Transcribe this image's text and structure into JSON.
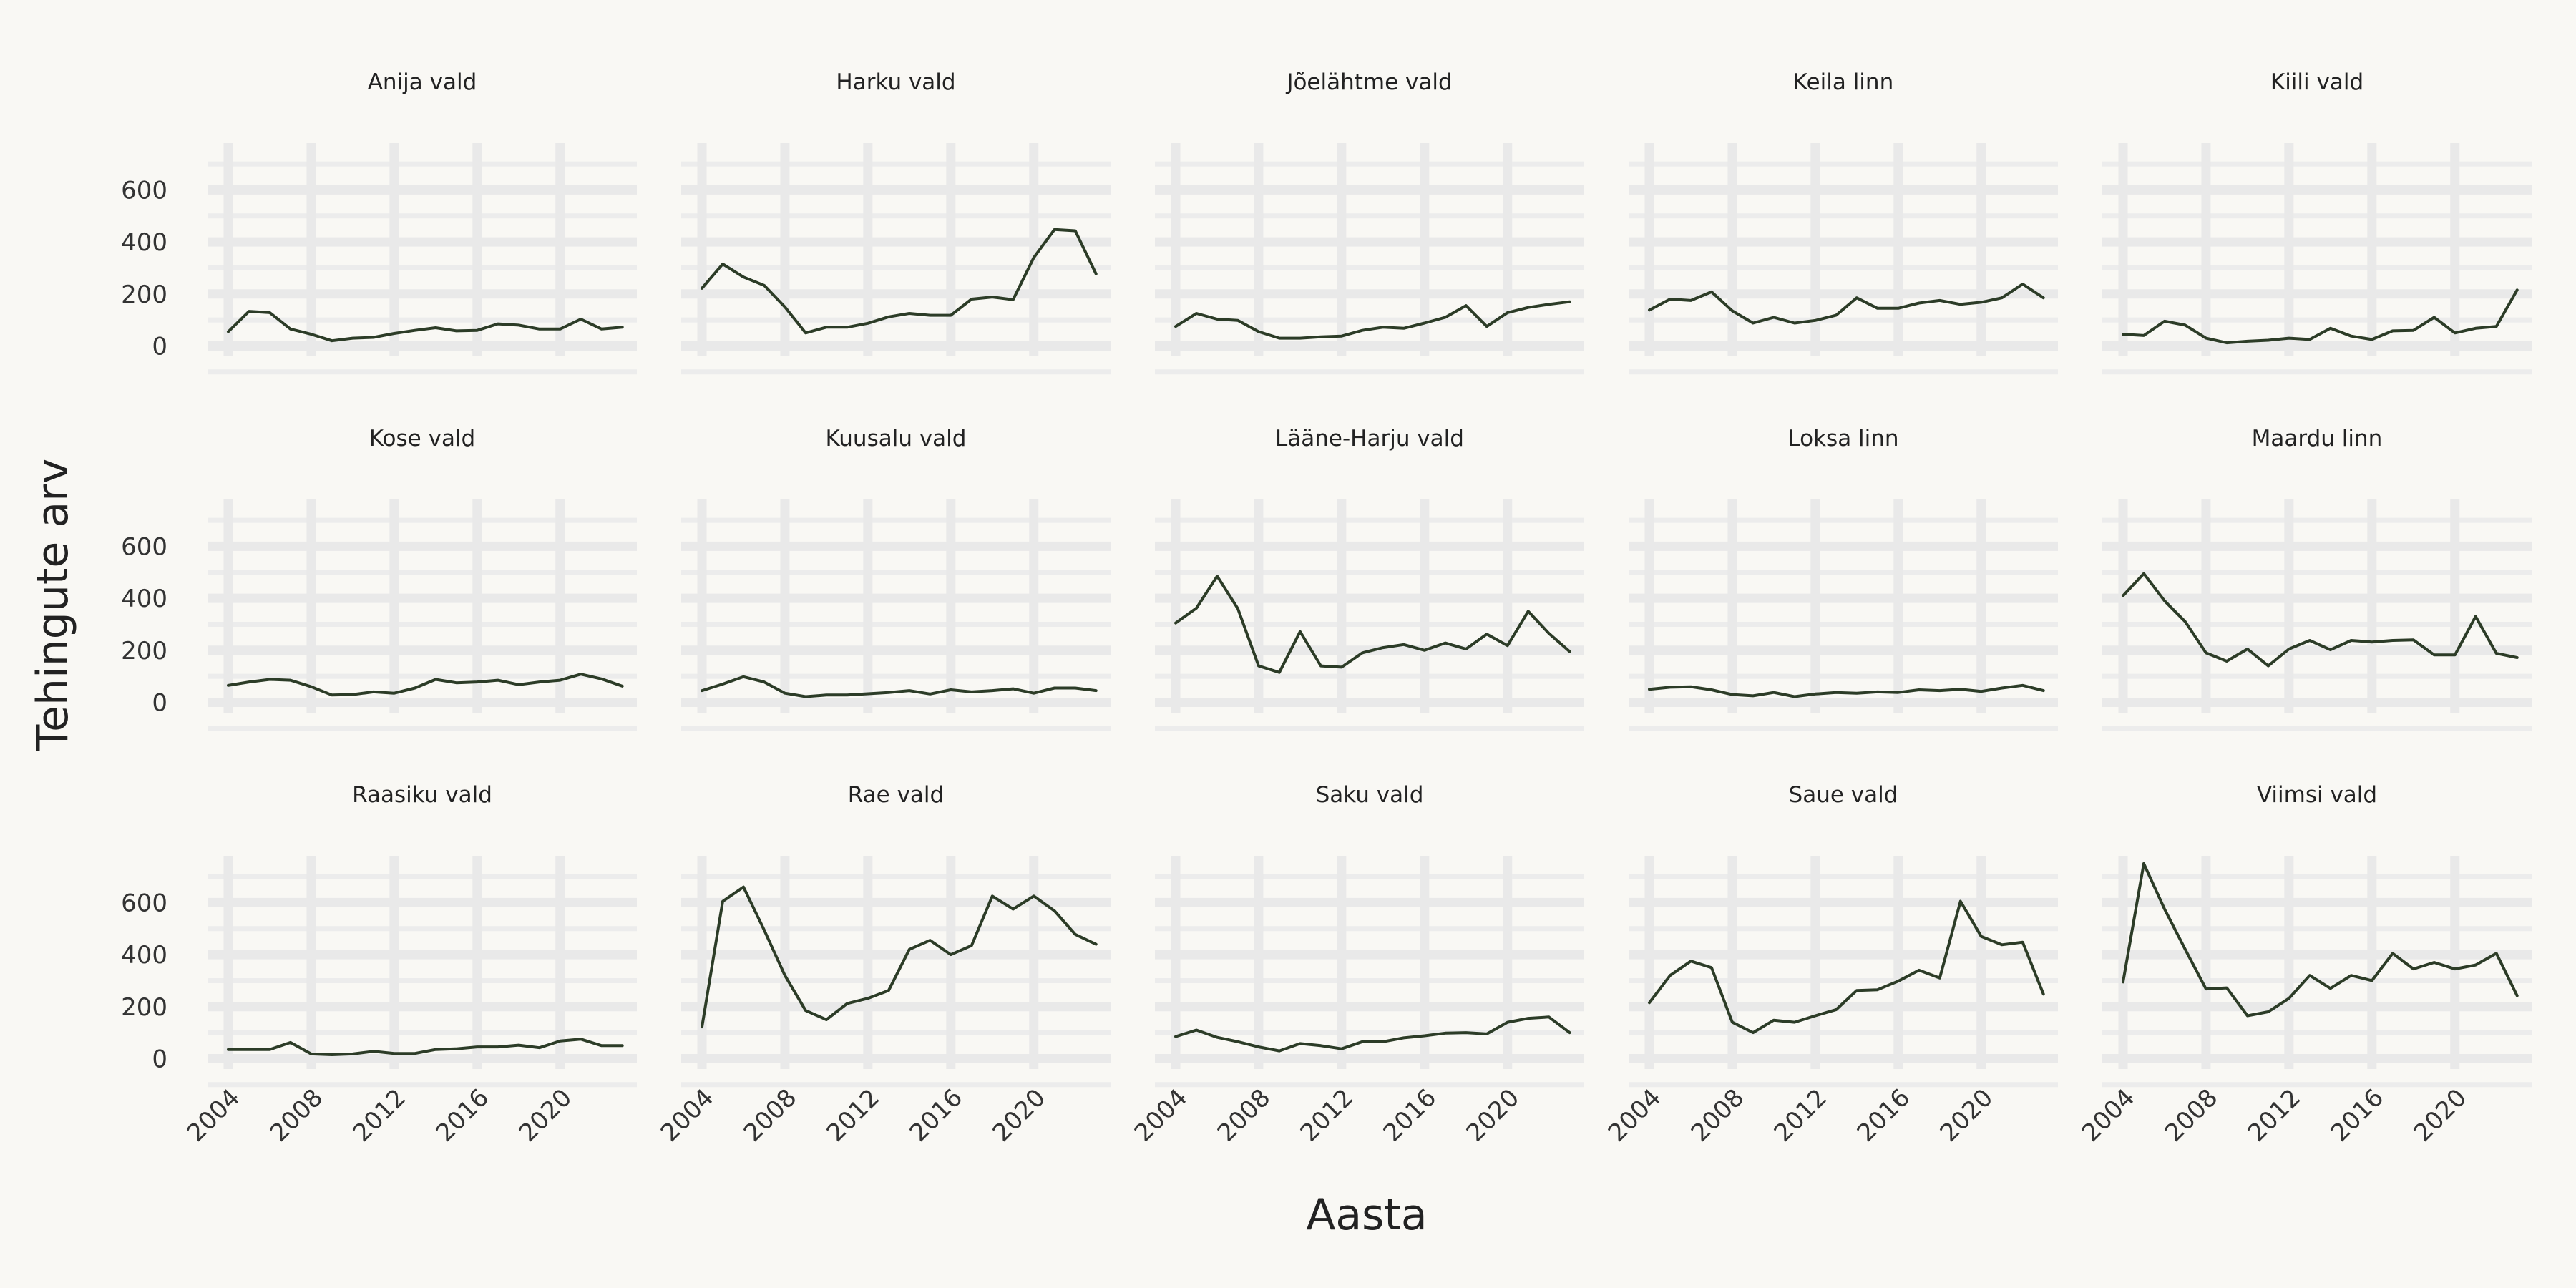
{
  "chart_data": {
    "type": "line",
    "xlabel": "Aasta",
    "ylabel": "Tehingute arv",
    "x_ticks": [
      2004,
      2008,
      2012,
      2016,
      2020
    ],
    "y_ticks": [
      0,
      200,
      400,
      600
    ],
    "xlim": [
      2003,
      2023.7
    ],
    "ylim": [
      -40,
      780
    ],
    "x": [
      2004,
      2005,
      2006,
      2007,
      2008,
      2009,
      2010,
      2011,
      2012,
      2013,
      2014,
      2015,
      2016,
      2017,
      2018,
      2019,
      2020,
      2021,
      2022,
      2023
    ],
    "colors": {
      "line": "#2c3c27",
      "background": "#f9f8f4",
      "grid": "#e9e9e9"
    },
    "grid": true,
    "panels": [
      {
        "title": "Anija vald",
        "values": [
          55,
          133,
          128,
          65,
          45,
          20,
          30,
          33,
          48,
          60,
          70,
          58,
          60,
          85,
          80,
          65,
          65,
          103,
          65,
          72
        ]
      },
      {
        "title": "Harku vald",
        "values": [
          222,
          315,
          265,
          233,
          150,
          50,
          72,
          72,
          87,
          112,
          125,
          118,
          118,
          180,
          188,
          178,
          340,
          448,
          443,
          277
        ]
      },
      {
        "title": "Jõelähtme vald",
        "values": [
          75,
          125,
          103,
          98,
          55,
          30,
          30,
          35,
          38,
          60,
          72,
          68,
          88,
          110,
          155,
          75,
          128,
          148,
          160,
          170
        ]
      },
      {
        "title": "Keila linn",
        "values": [
          138,
          180,
          175,
          208,
          135,
          88,
          110,
          88,
          98,
          118,
          185,
          145,
          145,
          165,
          175,
          160,
          168,
          185,
          238,
          185
        ]
      },
      {
        "title": "Kiili vald",
        "values": [
          45,
          40,
          95,
          80,
          30,
          12,
          18,
          22,
          30,
          25,
          68,
          38,
          25,
          58,
          60,
          110,
          50,
          68,
          75,
          215
        ]
      },
      {
        "title": "Kose vald",
        "values": [
          65,
          78,
          88,
          85,
          60,
          28,
          30,
          40,
          35,
          55,
          88,
          75,
          78,
          85,
          68,
          78,
          85,
          108,
          90,
          62
        ]
      },
      {
        "title": "Kuusalu vald",
        "values": [
          45,
          70,
          98,
          78,
          35,
          22,
          28,
          28,
          33,
          38,
          45,
          32,
          48,
          40,
          45,
          52,
          35,
          55,
          55,
          45
        ]
      },
      {
        "title": "Lääne-Harju vald",
        "values": [
          305,
          362,
          485,
          360,
          140,
          115,
          272,
          140,
          135,
          190,
          210,
          222,
          200,
          228,
          205,
          262,
          218,
          350,
          265,
          195
        ]
      },
      {
        "title": "Loksa linn",
        "values": [
          50,
          58,
          60,
          48,
          30,
          25,
          38,
          22,
          32,
          38,
          35,
          40,
          38,
          48,
          45,
          50,
          42,
          55,
          65,
          45
        ]
      },
      {
        "title": "Maardu linn",
        "values": [
          410,
          495,
          390,
          310,
          190,
          158,
          205,
          140,
          205,
          238,
          202,
          238,
          232,
          238,
          240,
          182,
          182,
          330,
          188,
          172
        ]
      },
      {
        "title": "Raasiku vald",
        "values": [
          35,
          35,
          35,
          62,
          18,
          15,
          18,
          28,
          20,
          20,
          35,
          38,
          45,
          45,
          52,
          42,
          68,
          75,
          50,
          50
        ]
      },
      {
        "title": "Rae vald",
        "values": [
          122,
          605,
          660,
          495,
          320,
          185,
          150,
          212,
          232,
          262,
          420,
          455,
          400,
          435,
          625,
          575,
          625,
          568,
          478,
          440
        ]
      },
      {
        "title": "Saku vald",
        "values": [
          85,
          110,
          82,
          65,
          45,
          30,
          58,
          50,
          38,
          65,
          65,
          80,
          88,
          98,
          100,
          95,
          140,
          155,
          160,
          100
        ]
      },
      {
        "title": "Saue vald",
        "values": [
          215,
          320,
          375,
          350,
          140,
          100,
          148,
          140,
          165,
          188,
          262,
          265,
          298,
          340,
          310,
          605,
          470,
          438,
          448,
          248
        ]
      },
      {
        "title": "Viimsi vald",
        "values": [
          295,
          750,
          575,
          420,
          268,
          272,
          165,
          180,
          232,
          320,
          270,
          320,
          300,
          405,
          345,
          370,
          345,
          360,
          405,
          242
        ]
      }
    ]
  }
}
